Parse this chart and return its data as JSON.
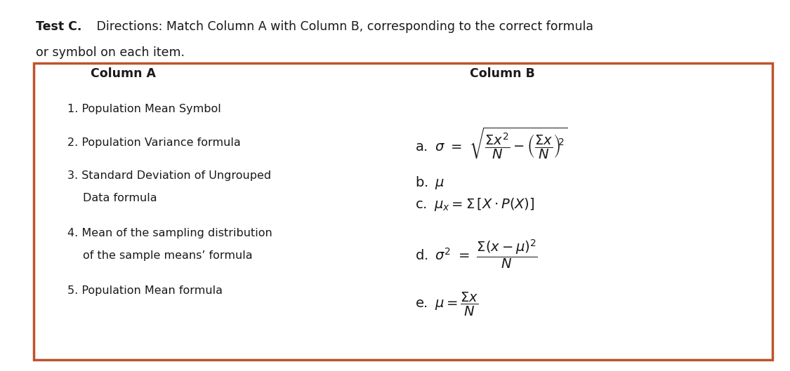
{
  "bg_color": "#ffffff",
  "box_edge_color": "#c0522a",
  "text_color": "#1a1a1a",
  "title_bold": "Test C.",
  "title_normal": " Directions: Match Column A with Column B, corresponding to the correct formula",
  "title_line2": "or symbol on each item.",
  "col_a_header": "Column A",
  "col_b_header": "Column B",
  "font_size_title": 12.5,
  "font_size_body": 11.5,
  "font_size_math": 12
}
